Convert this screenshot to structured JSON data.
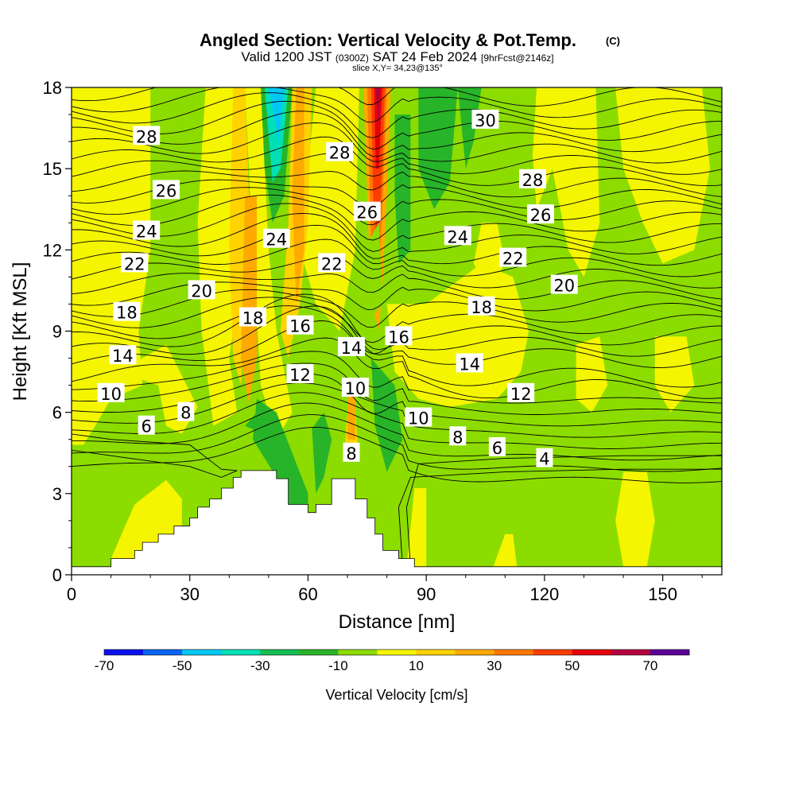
{
  "header": {
    "title": "Angled Section: Vertical Velocity & Pot.Temp.",
    "title_unit": "(C)",
    "valid_prefix": "Valid 1200 JST",
    "valid_utc": "(0300Z)",
    "valid_date": "SAT 24 Feb 2024",
    "forecast_tag": "[9hrFcst@2146z]",
    "slice_info": "slice X,Y= 34,23@135°"
  },
  "chart_data": {
    "type": "contour",
    "title": "Angled Section: Vertical Velocity & Pot.Temp.",
    "xlabel": "Distance [nm]",
    "ylabel": "Height [Kft MSL]",
    "xlim": [
      0,
      165
    ],
    "ylim": [
      0,
      18
    ],
    "x_ticks": [
      0,
      30,
      60,
      90,
      120,
      150
    ],
    "y_ticks": [
      0,
      3,
      6,
      9,
      12,
      15,
      18
    ],
    "colorbar": {
      "label": "Vertical Velocity [cm/s]",
      "tick_labels": [
        -70,
        -50,
        -30,
        -10,
        10,
        30,
        50,
        70
      ],
      "bins": [
        {
          "lo": -70,
          "hi": -60,
          "color": "#0a10f0"
        },
        {
          "lo": -60,
          "hi": -50,
          "color": "#0a64f5"
        },
        {
          "lo": -50,
          "hi": -40,
          "color": "#00c8f5"
        },
        {
          "lo": -40,
          "hi": -30,
          "color": "#00e0b4"
        },
        {
          "lo": -30,
          "hi": -20,
          "color": "#14be55"
        },
        {
          "lo": -20,
          "hi": -10,
          "color": "#28b428"
        },
        {
          "lo": -10,
          "hi": 0,
          "color": "#8cdc00"
        },
        {
          "lo": 0,
          "hi": 10,
          "color": "#f5f500"
        },
        {
          "lo": 10,
          "hi": 20,
          "color": "#ffd200"
        },
        {
          "lo": 20,
          "hi": 30,
          "color": "#ffaa00"
        },
        {
          "lo": 30,
          "hi": 40,
          "color": "#ff7800"
        },
        {
          "lo": 40,
          "hi": 50,
          "color": "#ff3c00"
        },
        {
          "lo": 50,
          "hi": 60,
          "color": "#e6000a"
        },
        {
          "lo": 60,
          "hi": 70,
          "color": "#b4003c"
        },
        {
          "lo": 70,
          "hi": 80,
          "color": "#5a0096"
        }
      ]
    },
    "terrain_profile": [
      [
        0,
        0.3
      ],
      [
        10,
        0.3
      ],
      [
        10,
        0.6
      ],
      [
        16,
        0.6
      ],
      [
        16,
        0.9
      ],
      [
        18,
        0.9
      ],
      [
        18,
        1.2
      ],
      [
        22,
        1.2
      ],
      [
        22,
        1.5
      ],
      [
        26,
        1.5
      ],
      [
        26,
        1.8
      ],
      [
        30,
        1.8
      ],
      [
        30,
        2.1
      ],
      [
        32,
        2.1
      ],
      [
        32,
        2.5
      ],
      [
        35,
        2.5
      ],
      [
        35,
        2.8
      ],
      [
        38,
        2.8
      ],
      [
        38,
        3.2
      ],
      [
        41,
        3.2
      ],
      [
        41,
        3.6
      ],
      [
        43,
        3.6
      ],
      [
        43,
        3.85
      ],
      [
        52,
        3.85
      ],
      [
        52,
        3.55
      ],
      [
        55,
        3.55
      ],
      [
        55,
        2.6
      ],
      [
        60,
        2.6
      ],
      [
        60,
        2.3
      ],
      [
        62,
        2.3
      ],
      [
        62,
        2.6
      ],
      [
        66,
        2.6
      ],
      [
        66,
        3.55
      ],
      [
        72,
        3.55
      ],
      [
        72,
        2.8
      ],
      [
        75,
        2.8
      ],
      [
        75,
        2.1
      ],
      [
        77,
        2.1
      ],
      [
        77,
        1.5
      ],
      [
        79,
        1.5
      ],
      [
        79,
        0.9
      ],
      [
        83,
        0.9
      ],
      [
        83,
        0.6
      ],
      [
        87,
        0.6
      ],
      [
        87,
        0.3
      ],
      [
        165,
        0.3
      ]
    ],
    "velocity_features": [
      {
        "kind": "updraft",
        "x": 78,
        "y0": 8.5,
        "y1": 18,
        "value": 60
      },
      {
        "kind": "updraft",
        "x": 59,
        "y0": 6,
        "y1": 18,
        "value": 25
      },
      {
        "kind": "updraft",
        "x": 44,
        "y0": 6,
        "y1": 18,
        "value": 25
      },
      {
        "kind": "downdraft",
        "x": 52,
        "y0": 15,
        "y1": 18,
        "value": -45
      },
      {
        "kind": "downdraft",
        "x": 58,
        "y0": 2.3,
        "y1": 5.5,
        "value": -20
      },
      {
        "kind": "downdraft",
        "x": 80,
        "y0": 4,
        "y1": 8,
        "value": -15
      },
      {
        "kind": "downdraft",
        "x": 95,
        "y0": 13.5,
        "y1": 18,
        "value": -15
      }
    ],
    "isentrope_labels": [
      {
        "text": "28",
        "x": 19,
        "y": 16.2
      },
      {
        "text": "26",
        "x": 24,
        "y": 14.2
      },
      {
        "text": "24",
        "x": 19,
        "y": 12.7
      },
      {
        "text": "22",
        "x": 16,
        "y": 11.5
      },
      {
        "text": "20",
        "x": 33,
        "y": 10.5
      },
      {
        "text": "18",
        "x": 14,
        "y": 9.7
      },
      {
        "text": "14",
        "x": 13,
        "y": 8.1
      },
      {
        "text": "10",
        "x": 10,
        "y": 6.7
      },
      {
        "text": "6",
        "x": 19,
        "y": 5.5
      },
      {
        "text": "8",
        "x": 29,
        "y": 6.0
      },
      {
        "text": "24",
        "x": 52,
        "y": 12.4
      },
      {
        "text": "18",
        "x": 46,
        "y": 9.5
      },
      {
        "text": "16",
        "x": 58,
        "y": 9.2
      },
      {
        "text": "12",
        "x": 58,
        "y": 7.4
      },
      {
        "text": "22",
        "x": 66,
        "y": 11.5
      },
      {
        "text": "14",
        "x": 71,
        "y": 8.4
      },
      {
        "text": "10",
        "x": 72,
        "y": 6.9
      },
      {
        "text": "8",
        "x": 71,
        "y": 4.5
      },
      {
        "text": "28",
        "x": 68,
        "y": 15.6
      },
      {
        "text": "26",
        "x": 75,
        "y": 13.4
      },
      {
        "text": "30",
        "x": 105,
        "y": 16.8
      },
      {
        "text": "28",
        "x": 117,
        "y": 14.6
      },
      {
        "text": "26",
        "x": 119,
        "y": 13.3
      },
      {
        "text": "24",
        "x": 98,
        "y": 12.5
      },
      {
        "text": "22",
        "x": 112,
        "y": 11.7
      },
      {
        "text": "20",
        "x": 125,
        "y": 10.7
      },
      {
        "text": "18",
        "x": 104,
        "y": 9.9
      },
      {
        "text": "16",
        "x": 83,
        "y": 8.8
      },
      {
        "text": "14",
        "x": 101,
        "y": 7.8
      },
      {
        "text": "12",
        "x": 114,
        "y": 6.7
      },
      {
        "text": "10",
        "x": 88,
        "y": 5.8
      },
      {
        "text": "8",
        "x": 98,
        "y": 5.1
      },
      {
        "text": "6",
        "x": 108,
        "y": 4.7
      },
      {
        "text": "4",
        "x": 120,
        "y": 4.3
      }
    ]
  }
}
